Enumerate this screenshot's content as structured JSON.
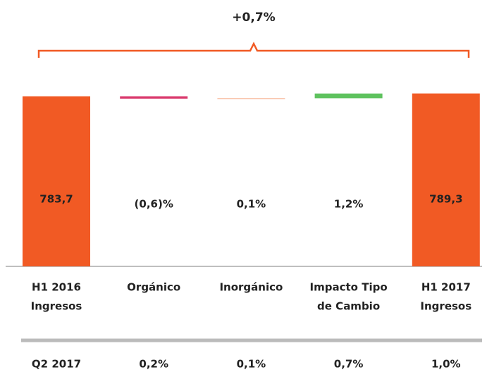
{
  "chart_data": {
    "type": "waterfall",
    "categories": [
      [
        "H1 2016",
        "Ingresos"
      ],
      [
        "Orgánico"
      ],
      [
        "Inorgánico"
      ],
      [
        "Impacto Tipo",
        "de Cambio"
      ],
      [
        "H1 2017",
        "Ingresos"
      ]
    ],
    "totals": {
      "values": [
        783.7,
        789.3
      ],
      "value_labels": [
        "783,7",
        "789,3"
      ],
      "color": "#f15a24"
    },
    "changes": {
      "values": [
        -0.6,
        0.1,
        1.2
      ],
      "value_labels": [
        "(0,6)%",
        "0,1%",
        "1,2%"
      ],
      "colors": [
        "#d9366b",
        "#f5a07a",
        "#5ec25e"
      ]
    },
    "total_change": {
      "value": 0.7,
      "label": "+0,7%",
      "color": "#5cb85c"
    },
    "comparison": {
      "name": "Q2 2017",
      "values": [
        0.2,
        0.1,
        0.7,
        1.0
      ],
      "value_labels": [
        "0,2%",
        "0,1%",
        "0,7%",
        "1,0%"
      ]
    },
    "ylim": [
      445,
      800
    ]
  }
}
